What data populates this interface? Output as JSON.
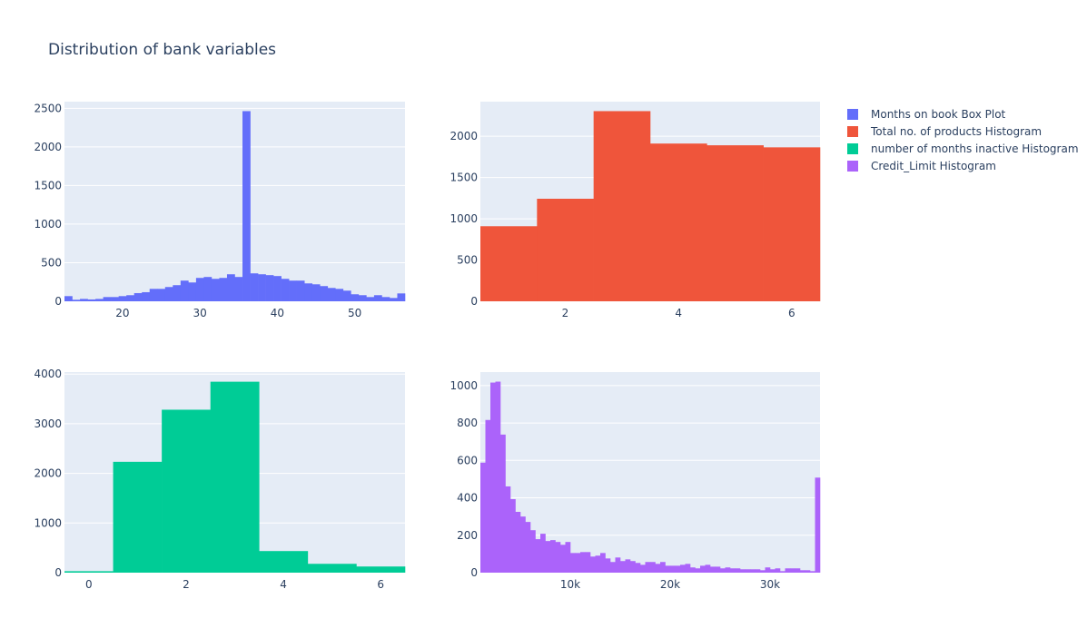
{
  "title": "Distribution of bank variables",
  "colors": {
    "plot_bg": "#E5ECF6",
    "grid": "#ffffff",
    "text": "#2a3f5f"
  },
  "chart_data": [
    {
      "type": "bar",
      "name": "Months on book Box Plot",
      "color": "#636efa",
      "grid": true,
      "xbins": {
        "start": 12.5,
        "size": 1
      },
      "counts": [
        67,
        20,
        31,
        24,
        31,
        55,
        55,
        67,
        79,
        106,
        118,
        161,
        161,
        185,
        209,
        268,
        244,
        303,
        315,
        291,
        303,
        350,
        315,
        2463,
        362,
        350,
        339,
        327,
        291,
        268,
        268,
        232,
        220,
        197,
        173,
        161,
        138,
        91,
        79,
        55,
        79,
        55,
        43,
        102
      ],
      "xlim": [
        12.5,
        56.5
      ],
      "ylim": [
        0,
        2586
      ],
      "xticks": [
        20,
        30,
        40,
        50
      ],
      "xtick_labels": [
        "20",
        "30",
        "40",
        "50"
      ],
      "yticks": [
        0,
        500,
        1000,
        1500,
        2000,
        2500
      ],
      "ytick_labels": [
        "0",
        "500",
        "1000",
        "1500",
        "2000",
        "2500"
      ]
    },
    {
      "type": "bar",
      "name": "Total no. of products Histogram",
      "color": "#EF553B",
      "grid": true,
      "xbins": {
        "start": 0.5,
        "size": 1
      },
      "counts": [
        910,
        1243,
        2305,
        1912,
        1891,
        1866
      ],
      "xlim": [
        0.5,
        6.5
      ],
      "ylim": [
        0,
        2420
      ],
      "xticks": [
        2,
        4,
        6
      ],
      "xtick_labels": [
        "2",
        "4",
        "6"
      ],
      "yticks": [
        0,
        500,
        1000,
        1500,
        2000
      ],
      "ytick_labels": [
        "0",
        "500",
        "1000",
        "1500",
        "2000"
      ]
    },
    {
      "type": "bar",
      "name": "number of months inactive Histogram",
      "color": "#00cc96",
      "grid": true,
      "xbins": {
        "start": -0.5,
        "size": 1
      },
      "counts": [
        29,
        2233,
        3282,
        3846,
        435,
        178,
        124
      ],
      "xlim": [
        -0.5,
        6.5
      ],
      "ylim": [
        0,
        4040
      ],
      "xticks": [
        0,
        2,
        4,
        6
      ],
      "xtick_labels": [
        "0",
        "2",
        "4",
        "6"
      ],
      "yticks": [
        0,
        1000,
        2000,
        3000,
        4000
      ],
      "ytick_labels": [
        "0",
        "1000",
        "2000",
        "3000",
        "4000"
      ]
    },
    {
      "type": "bar",
      "name": "Credit_Limit Histogram",
      "color": "#ab63fa",
      "grid": true,
      "xbins": {
        "start": 1000,
        "size": 500
      },
      "counts": [
        588,
        816,
        1016,
        1021,
        738,
        461,
        393,
        325,
        300,
        271,
        227,
        179,
        208,
        169,
        174,
        164,
        149,
        164,
        105,
        105,
        110,
        110,
        86,
        91,
        105,
        76,
        57,
        81,
        62,
        71,
        62,
        52,
        42,
        57,
        57,
        47,
        57,
        37,
        37,
        37,
        42,
        47,
        28,
        23,
        37,
        42,
        32,
        32,
        23,
        28,
        23,
        23,
        18,
        18,
        18,
        18,
        13,
        28,
        18,
        23,
        8,
        23,
        23,
        23,
        13,
        13,
        8,
        508
      ],
      "xlim": [
        1000,
        35000
      ],
      "ylim": [
        0,
        1072
      ],
      "xticks": [
        10000,
        20000,
        30000
      ],
      "xtick_labels": [
        "10k",
        "20k",
        "30k"
      ],
      "yticks": [
        0,
        200,
        400,
        600,
        800,
        1000
      ],
      "ytick_labels": [
        "0",
        "200",
        "400",
        "600",
        "800",
        "1000"
      ]
    }
  ],
  "legend": {
    "placement": "top-right",
    "items": [
      {
        "label": "Months on book Box Plot",
        "color": "#636efa"
      },
      {
        "label": "Total no. of products Histogram",
        "color": "#EF553B"
      },
      {
        "label": "number of months inactive Histogram",
        "color": "#00cc96"
      },
      {
        "label": "Credit_Limit Histogram",
        "color": "#ab63fa"
      }
    ]
  }
}
